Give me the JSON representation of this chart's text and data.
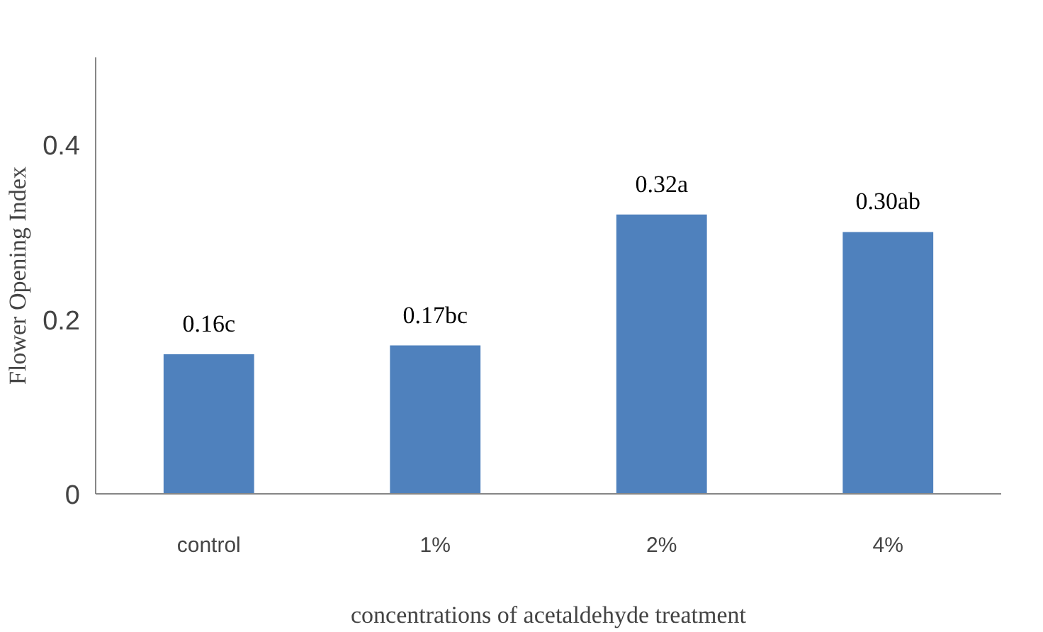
{
  "chart_data": {
    "type": "bar",
    "xlabel": "concentrations of acetaldehyde treatment",
    "ylabel": "Flower Opening Index",
    "categories": [
      "control",
      "1%",
      "2%",
      "4%"
    ],
    "values": [
      0.16,
      0.17,
      0.32,
      0.3
    ],
    "value_labels": [
      "0.16c",
      "0.17bc",
      "0.32a",
      "0.30ab"
    ],
    "color": "#4f81bd",
    "ylim": [
      0,
      0.5
    ],
    "yticks": [
      0,
      0.2,
      0.4
    ],
    "grid": false
  }
}
